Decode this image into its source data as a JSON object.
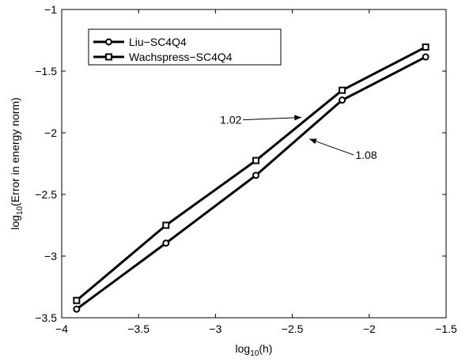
{
  "chart_data": {
    "type": "line",
    "xlabel_base": "log",
    "xlabel_sub": "10",
    "xlabel_arg": "(h)",
    "ylabel_base": "log",
    "ylabel_sub": "10",
    "ylabel_arg": "(Error in energy norm)",
    "xlim": [
      -4,
      -1.5
    ],
    "ylim": [
      -3.5,
      -1
    ],
    "xticks": [
      -4,
      -3.5,
      -3,
      -2.5,
      -2,
      -1.5
    ],
    "yticks": [
      -3.5,
      -3,
      -2.5,
      -2,
      -1.5,
      -1
    ],
    "xtick_labels": [
      "−4",
      "−3.5",
      "−3",
      "−2.5",
      "−2",
      "−1.5"
    ],
    "ytick_labels": [
      "−3.5",
      "−3",
      "−2.5",
      "−2",
      "−1.5",
      "−1"
    ],
    "grid": false,
    "legend_position": "top-left",
    "series": [
      {
        "name": "Liu−SC4Q4",
        "marker": "circle",
        "color": "#000000",
        "x": [
          -3.903,
          -3.322,
          -2.737,
          -2.176,
          -1.633
        ],
        "y": [
          -3.43,
          -2.895,
          -2.345,
          -1.735,
          -1.385
        ]
      },
      {
        "name": "Wachspress−SC4Q4",
        "marker": "square",
        "color": "#000000",
        "x": [
          -3.903,
          -3.322,
          -2.737,
          -2.176,
          -1.633
        ],
        "y": [
          -3.36,
          -2.75,
          -2.225,
          -1.655,
          -1.305
        ]
      }
    ],
    "annotations": [
      {
        "text": "1.02",
        "text_x": -2.82,
        "text_y": -1.895,
        "arrow_x": -2.44,
        "arrow_y": -1.875,
        "anchor": "end"
      },
      {
        "text": "1.08",
        "text_x": -2.1,
        "text_y": -2.18,
        "arrow_x": -2.39,
        "arrow_y": -2.05,
        "anchor": "start"
      }
    ]
  }
}
